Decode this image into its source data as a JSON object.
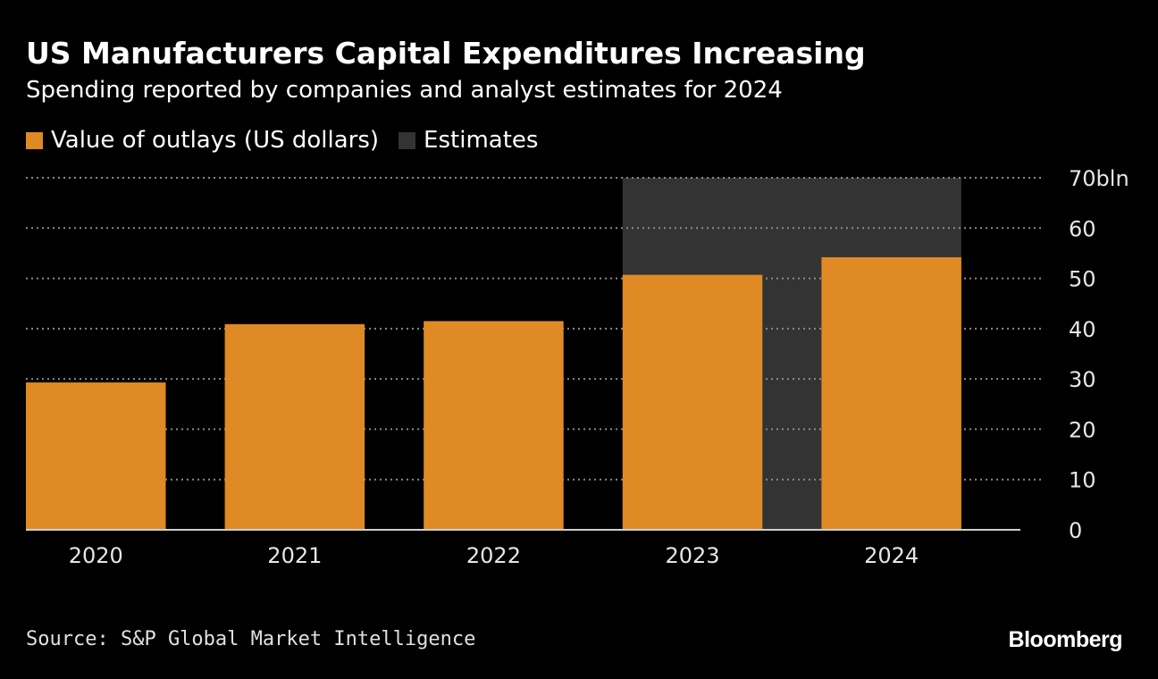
{
  "header": {
    "title": "US Manufacturers Capital Expenditures Increasing",
    "subtitle": "Spending reported by companies and analyst estimates for 2024"
  },
  "legend": {
    "items": [
      {
        "label": "Value of outlays (US dollars)",
        "color": "#e08a25"
      },
      {
        "label": "Estimates",
        "color": "#333333"
      }
    ]
  },
  "chart_data": {
    "type": "bar",
    "title": "US Manufacturers Capital Expenditures Increasing",
    "subtitle": "Spending reported by companies and analyst estimates for 2024",
    "categories": [
      "2020",
      "2021",
      "2022",
      "2023",
      "2024"
    ],
    "series": [
      {
        "name": "Value of outlays (US dollars)",
        "values": [
          29.3,
          40.9,
          41.5,
          50.7,
          54.2
        ],
        "color": "#e08a25"
      }
    ],
    "estimate_region": {
      "label": "Estimates",
      "from": "2023",
      "to": "2024",
      "color": "#333333"
    },
    "y_ticks": [
      0,
      10,
      20,
      30,
      40,
      50,
      60,
      70
    ],
    "y_tick_labels": [
      "0",
      "10",
      "20",
      "30",
      "40",
      "50",
      "60",
      "70bln"
    ],
    "ylim": [
      0,
      70
    ],
    "ylabel": "",
    "xlabel": "",
    "grid": true,
    "grid_style": "dotted",
    "y_axis_position": "right",
    "legend_position": "top-left"
  },
  "footer": {
    "source": "Source: S&P Global Market Intelligence",
    "brand": "Bloomberg"
  }
}
